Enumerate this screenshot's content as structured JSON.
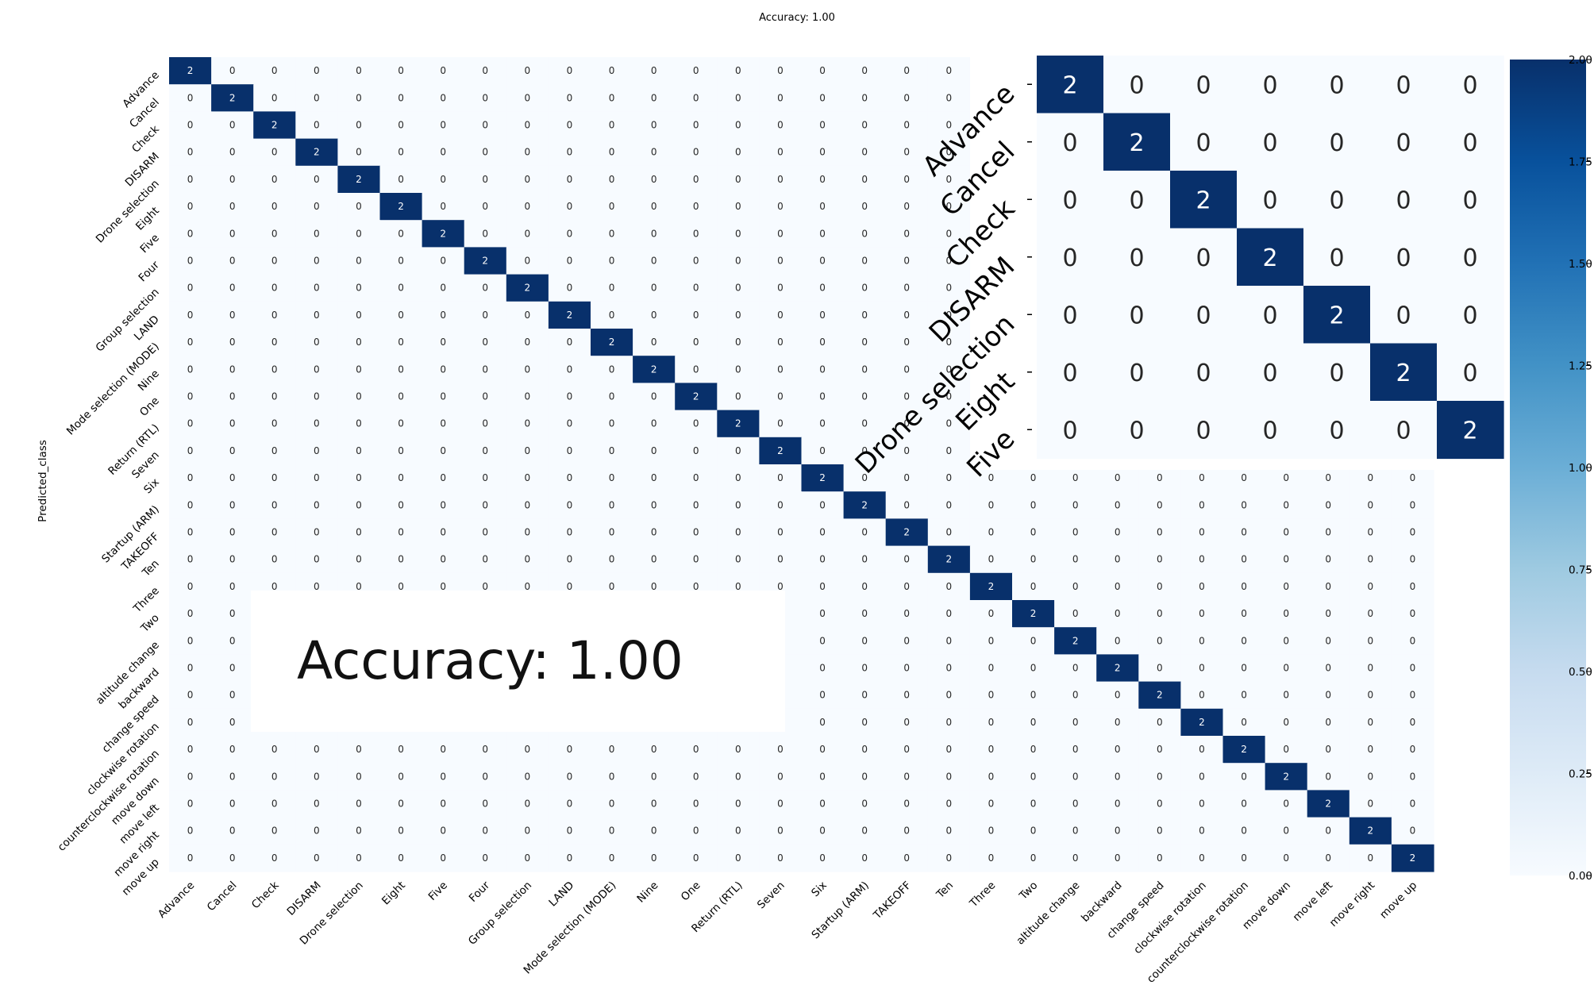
{
  "chart_data": {
    "type": "heatmap",
    "title": "Accuracy: 1.00",
    "ylabel": "Predicted_class",
    "xlabel": "",
    "classes": [
      "Advance",
      "Cancel",
      "Check",
      "DISARM",
      "Drone selection",
      "Eight",
      "Five",
      "Four",
      "Group selection",
      "LAND",
      "Mode selection (MODE)",
      "Nine",
      "One",
      "Return (RTL)",
      "Seven",
      "Six",
      "Startup (ARM)",
      "TAKEOFF",
      "Ten",
      "Three",
      "Two",
      "altitude change",
      "backward",
      "change speed",
      "clockwise rotation",
      "counterclockwise rotation",
      "move down",
      "move left",
      "move right",
      "move up"
    ],
    "diagonal_value": 2,
    "off_diagonal_value": 0,
    "colormap": "Blues",
    "vmin": 0,
    "vmax": 2,
    "colorbar_ticks": [
      "0.00",
      "0.25",
      "0.50",
      "0.75",
      "1.00",
      "1.25",
      "1.50",
      "1.75",
      "2.00"
    ],
    "inset": {
      "rows": [
        "Advance",
        "Cancel",
        "Check",
        "DISARM",
        "Drone selection",
        "Eight",
        "Five"
      ],
      "cols": 7
    },
    "zoom_label": "Accuracy: 1.00"
  },
  "colors": {
    "low": "#f7fbff",
    "high": "#08306b",
    "mid": "#6baed6"
  }
}
